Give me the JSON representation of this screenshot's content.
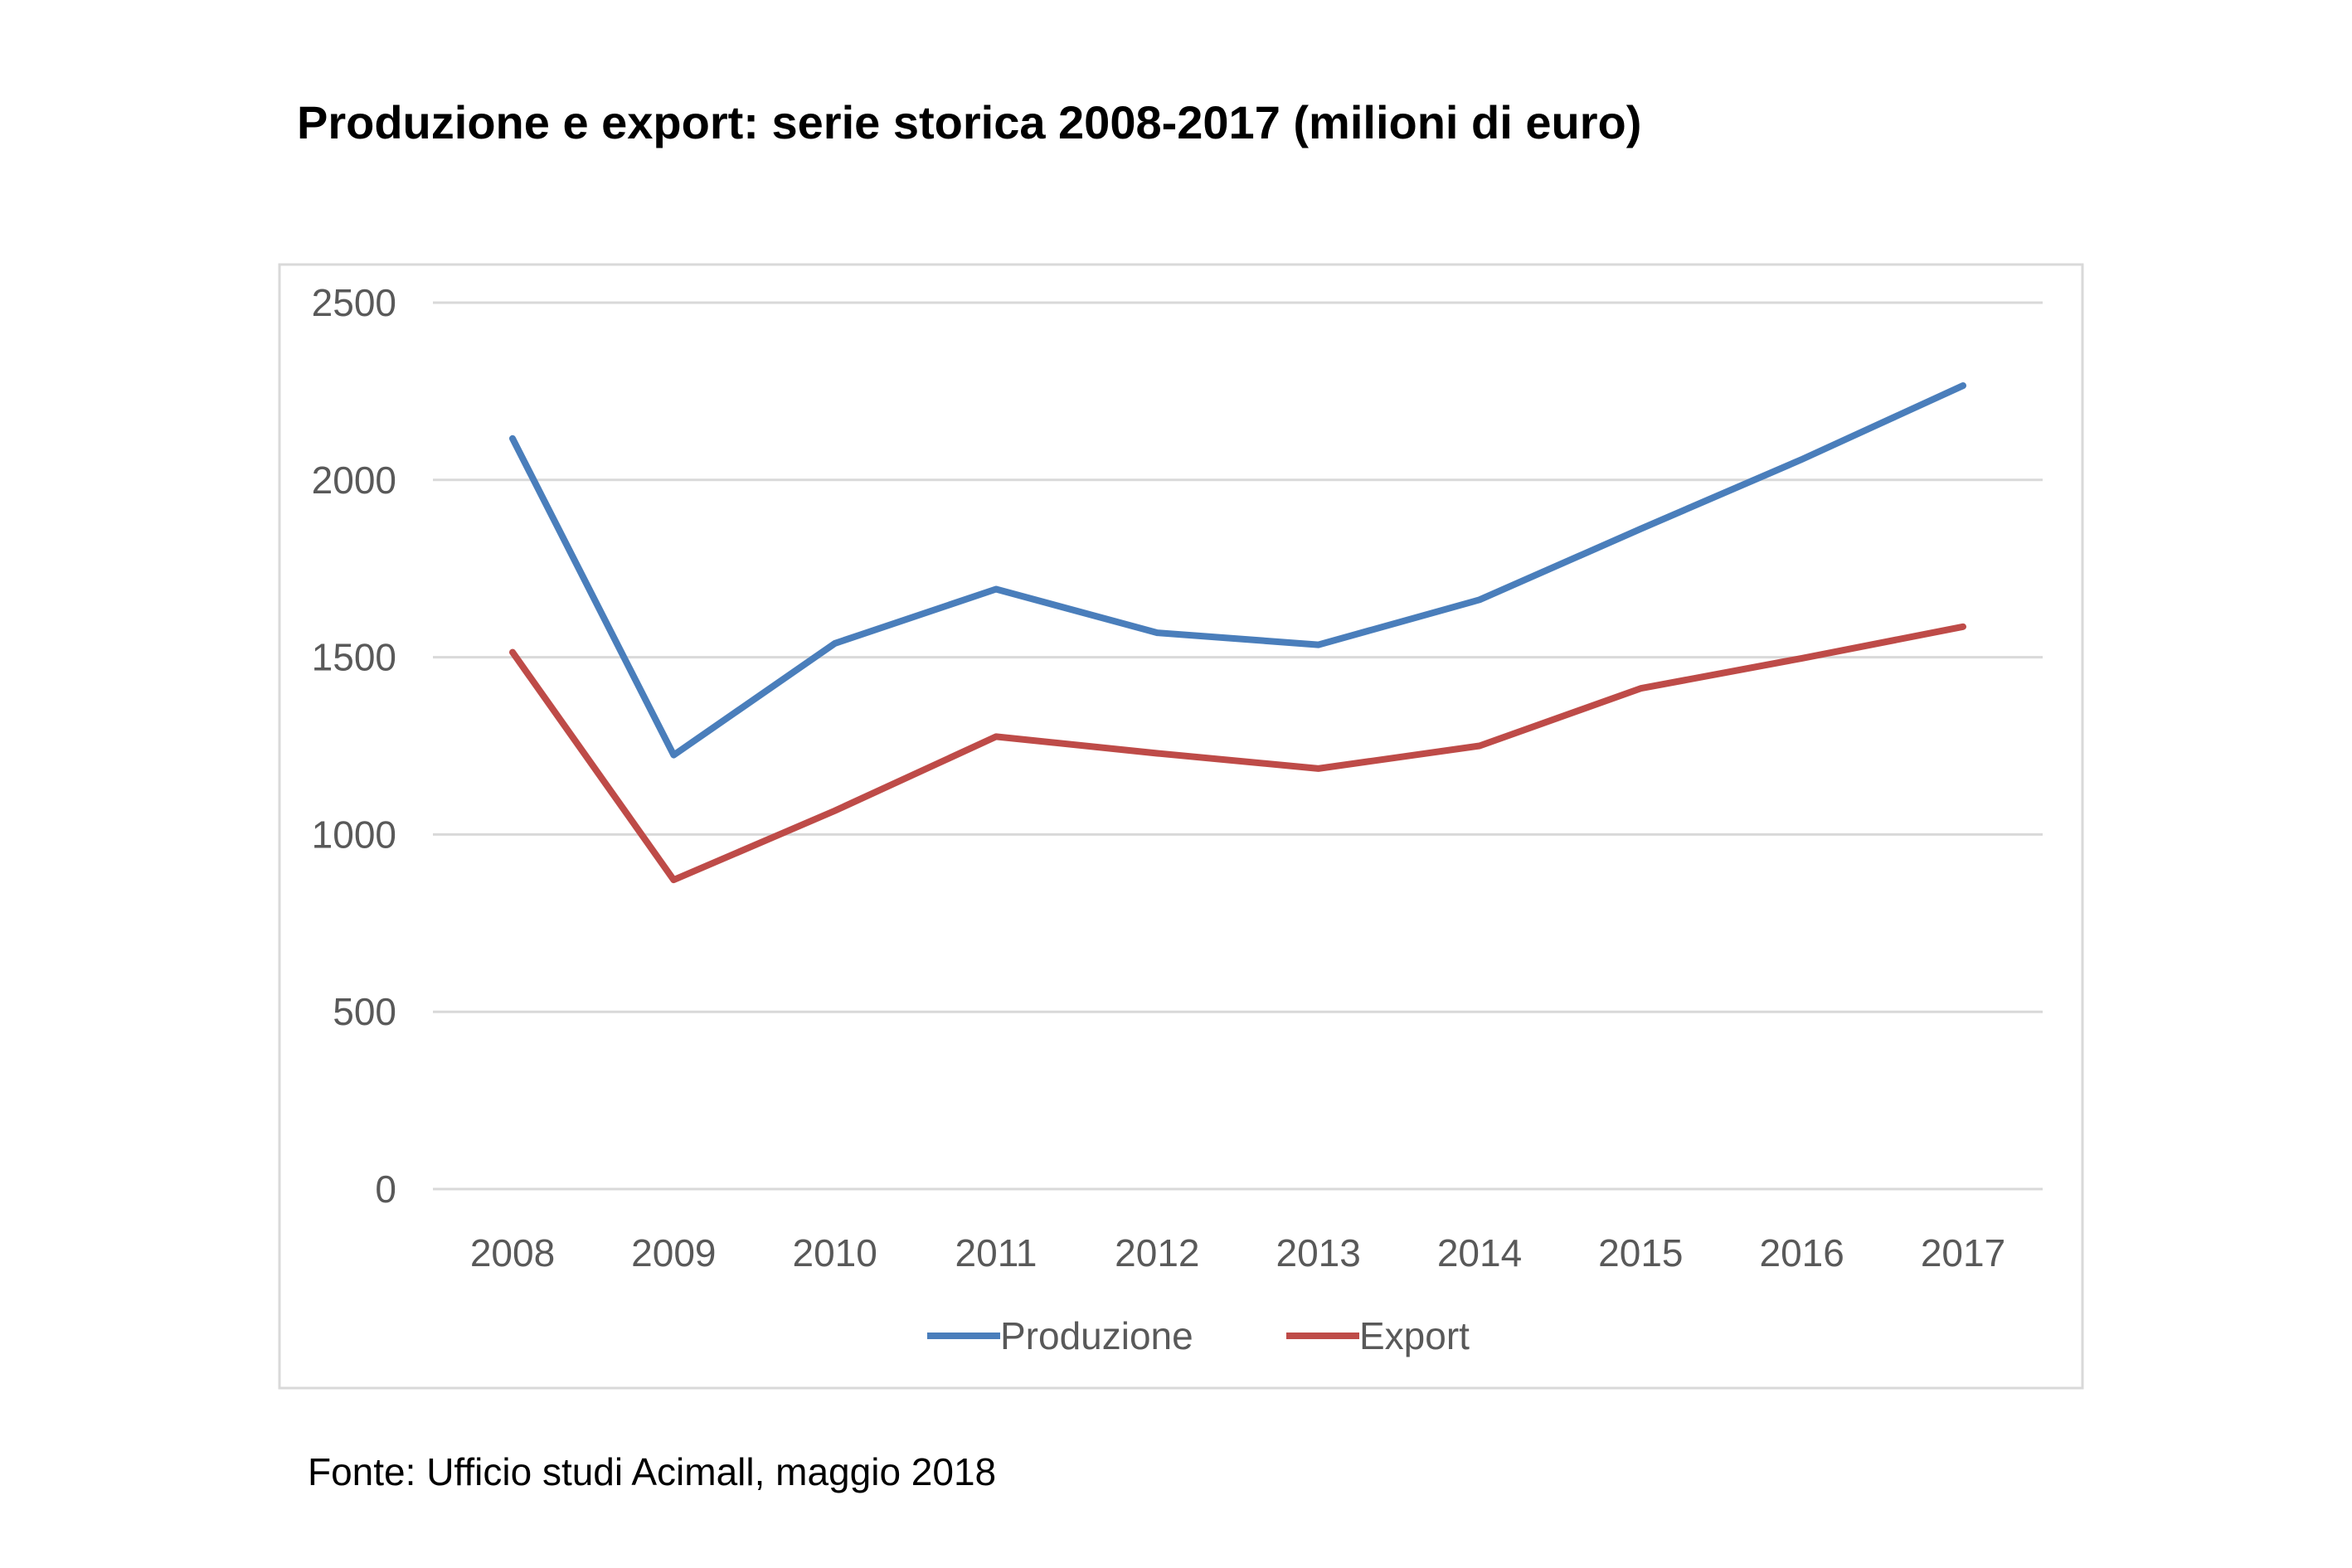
{
  "title": "Produzione e export: serie storica 2008-2017 (milioni di euro)",
  "source": "Fonte: Ufficio studi Acimall, maggio 2018",
  "chart_data": {
    "type": "line",
    "title": "Produzione e export: serie storica 2008-2017 (milioni di euro)",
    "xlabel": "",
    "ylabel": "",
    "categories": [
      "2008",
      "2009",
      "2010",
      "2011",
      "2012",
      "2013",
      "2014",
      "2015",
      "2016",
      "2017"
    ],
    "ylim": [
      0,
      2500
    ],
    "yticks": [
      0,
      500,
      1000,
      1500,
      2000,
      2500
    ],
    "grid": true,
    "legend": "bottom",
    "series": [
      {
        "name": "Produzione",
        "color": "#4a7ebb",
        "values": [
          2117,
          1224,
          1539,
          1692,
          1569,
          1535,
          1662,
          1862,
          2058,
          2266
        ]
      },
      {
        "name": "Export",
        "color": "#be4b48",
        "values": [
          1514,
          872,
          1067,
          1276,
          1229,
          1186,
          1250,
          1412,
          1497,
          1586
        ]
      }
    ]
  }
}
